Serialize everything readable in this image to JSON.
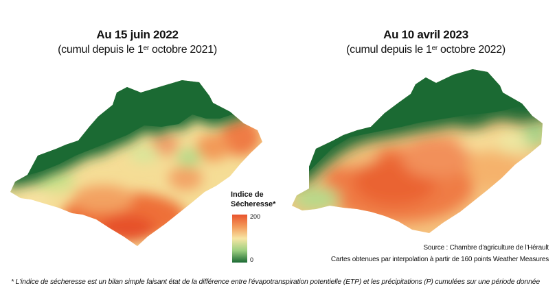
{
  "map_left": {
    "title": "Au 15 juin 2022",
    "subtitle_pre": "(cumul depuis le 1",
    "subtitle_sup": "er",
    "subtitle_post": " octobre 2021)"
  },
  "map_right": {
    "title": "Au 10 avril 2023",
    "subtitle_pre": "(cumul depuis le 1",
    "subtitle_sup": "er",
    "subtitle_post": " octobre 2022)"
  },
  "legend": {
    "title_line1": "Indice de",
    "title_line2": "Sécheresse*",
    "max_label": "200",
    "min_label": "0",
    "colors": [
      "#e8542d",
      "#f39a5a",
      "#f7e6a4",
      "#9ccf80",
      "#1b6a33"
    ]
  },
  "source": {
    "line1": "Source : Chambre d'agriculture de l'Hérault",
    "line2": "Cartes obtenues par interpolation à partir de 160 points Weather Measures"
  },
  "footnote": "* L'indice de sécheresse est un bilan simple faisant état de la différence entre l'évapotranspiration potentielle (ETP) et les précipitations (P) cumulées sur une période donnée"
}
